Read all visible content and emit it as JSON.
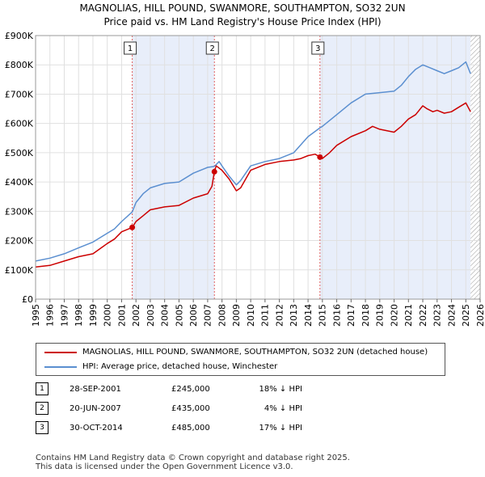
{
  "title_line1": "MAGNOLIAS, HILL POUND, SWANMORE, SOUTHAMPTON, SO32 2UN",
  "title_line2": "Price paid vs. HM Land Registry's House Price Index (HPI)",
  "chart_data": {
    "type": "line",
    "ylim": [
      0,
      900000
    ],
    "xlim": [
      1995.0,
      2026.0
    ],
    "y_ticks": [
      0,
      100000,
      200000,
      300000,
      400000,
      500000,
      600000,
      700000,
      800000,
      900000
    ],
    "y_tick_labels": [
      "£0",
      "£100K",
      "£200K",
      "£300K",
      "£400K",
      "£500K",
      "£600K",
      "£700K",
      "£800K",
      "£900K"
    ],
    "x_ticks": [
      1995,
      1996,
      1997,
      1998,
      1999,
      2000,
      2001,
      2002,
      2003,
      2004,
      2005,
      2006,
      2007,
      2008,
      2009,
      2010,
      2011,
      2012,
      2013,
      2014,
      2015,
      2016,
      2017,
      2018,
      2019,
      2020,
      2021,
      2022,
      2023,
      2024,
      2025,
      2026
    ],
    "x_tick_labels": [
      "1995",
      "1996",
      "1997",
      "1998",
      "1999",
      "2000",
      "2001",
      "2002",
      "2003",
      "2004",
      "2005",
      "2006",
      "2007",
      "2008",
      "2009",
      "2010",
      "2011",
      "2012",
      "2013",
      "2014",
      "2015",
      "2016",
      "2017",
      "2018",
      "2019",
      "2020",
      "2021",
      "2022",
      "2023",
      "2024",
      "2025",
      "2026"
    ],
    "shaded_bands": [
      [
        2001.74,
        2007.47
      ],
      [
        2014.83,
        2025.33
      ]
    ],
    "hatch_from": 2025.33,
    "series": [
      {
        "name": "MAGNOLIAS, HILL POUND, SWANMORE, SOUTHAMPTON, SO32 2UN (detached house)",
        "color": "#cc0000",
        "x": [
          1995.0,
          1996.0,
          1997.0,
          1998.0,
          1999.0,
          2000.0,
          2000.5,
          2001.0,
          2001.74,
          2002.0,
          2002.5,
          2003.0,
          2004.0,
          2005.0,
          2006.0,
          2007.0,
          2007.3,
          2007.47,
          2007.6,
          2008.0,
          2008.5,
          2009.0,
          2009.3,
          2010.0,
          2011.0,
          2012.0,
          2013.0,
          2013.5,
          2014.0,
          2014.5,
          2014.83,
          2015.0,
          2015.5,
          2016.0,
          2017.0,
          2018.0,
          2018.5,
          2019.0,
          2020.0,
          2020.5,
          2021.0,
          2021.5,
          2022.0,
          2022.3,
          2022.7,
          2023.0,
          2023.5,
          2024.0,
          2024.5,
          2025.0,
          2025.33
        ],
        "y": [
          110000,
          115000,
          130000,
          145000,
          155000,
          190000,
          205000,
          230000,
          245000,
          265000,
          285000,
          305000,
          315000,
          320000,
          345000,
          360000,
          385000,
          435000,
          455000,
          440000,
          410000,
          370000,
          380000,
          440000,
          460000,
          470000,
          475000,
          480000,
          490000,
          495000,
          485000,
          480000,
          500000,
          525000,
          555000,
          575000,
          590000,
          580000,
          570000,
          590000,
          615000,
          630000,
          660000,
          650000,
          640000,
          645000,
          635000,
          640000,
          655000,
          670000,
          640000
        ]
      },
      {
        "name": "HPI: Average price, detached house, Winchester",
        "color": "#5b8fd0",
        "x": [
          1995.0,
          1996.0,
          1997.0,
          1998.0,
          1999.0,
          2000.0,
          2000.5,
          2001.0,
          2001.74,
          2002.0,
          2002.5,
          2003.0,
          2004.0,
          2005.0,
          2006.0,
          2007.0,
          2007.47,
          2007.8,
          2008.0,
          2008.5,
          2009.0,
          2009.3,
          2010.0,
          2011.0,
          2012.0,
          2013.0,
          2014.0,
          2014.83,
          2015.0,
          2016.0,
          2017.0,
          2018.0,
          2019.0,
          2020.0,
          2020.5,
          2021.0,
          2021.5,
          2022.0,
          2022.5,
          2023.0,
          2023.5,
          2024.0,
          2024.5,
          2025.0,
          2025.33
        ],
        "y": [
          130000,
          140000,
          155000,
          175000,
          195000,
          225000,
          240000,
          265000,
          298000,
          330000,
          360000,
          380000,
          395000,
          400000,
          430000,
          450000,
          453000,
          470000,
          455000,
          420000,
          390000,
          405000,
          455000,
          470000,
          480000,
          500000,
          555000,
          585000,
          590000,
          630000,
          670000,
          700000,
          705000,
          710000,
          730000,
          760000,
          785000,
          800000,
          790000,
          780000,
          770000,
          780000,
          790000,
          810000,
          770000
        ]
      }
    ],
    "markers": [
      {
        "label": "1",
        "x": 2001.74,
        "y": 245000
      },
      {
        "label": "2",
        "x": 2007.47,
        "y": 435000
      },
      {
        "label": "3",
        "x": 2014.83,
        "y": 485000
      }
    ]
  },
  "legend": {
    "red_label": "MAGNOLIAS, HILL POUND, SWANMORE, SOUTHAMPTON, SO32 2UN (detached house)",
    "blue_label": "HPI: Average price, detached house, Winchester"
  },
  "transactions": [
    {
      "num": "1",
      "date": "28-SEP-2001",
      "price": "£245,000",
      "hpi": "18% ↓ HPI"
    },
    {
      "num": "2",
      "date": "20-JUN-2007",
      "price": "£435,000",
      "hpi": "4% ↓ HPI"
    },
    {
      "num": "3",
      "date": "30-OCT-2014",
      "price": "£485,000",
      "hpi": "17% ↓ HPI"
    }
  ],
  "footer_line1": "Contains HM Land Registry data © Crown copyright and database right 2025.",
  "footer_line2": "This data is licensed under the Open Government Licence v3.0."
}
